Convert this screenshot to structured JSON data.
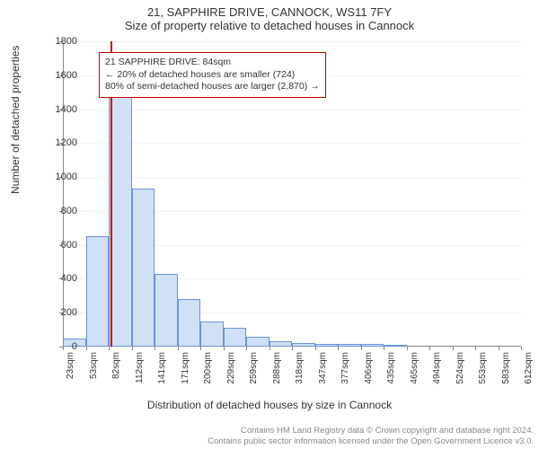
{
  "title_main": "21, SAPPHIRE DRIVE, CANNOCK, WS11 7FY",
  "title_sub": "Size of property relative to detached houses in Cannock",
  "y_axis_label": "Number of detached properties",
  "x_axis_label": "Distribution of detached houses by size in Cannock",
  "chart": {
    "type": "histogram",
    "ylim": [
      0,
      1800
    ],
    "ytick_step": 200,
    "xtick_labels": [
      "23sqm",
      "53sqm",
      "82sqm",
      "112sqm",
      "141sqm",
      "171sqm",
      "200sqm",
      "229sqm",
      "259sqm",
      "288sqm",
      "318sqm",
      "347sqm",
      "377sqm",
      "406sqm",
      "435sqm",
      "465sqm",
      "494sqm",
      "524sqm",
      "553sqm",
      "583sqm",
      "612sqm"
    ],
    "bars": [
      50,
      650,
      1480,
      930,
      430,
      280,
      150,
      110,
      60,
      30,
      20,
      15,
      15,
      15,
      5,
      0,
      0,
      0,
      0,
      0
    ],
    "bar_fill": "#cfe0f7",
    "bar_border": "#6b93d6",
    "grid_color": "#f0f0f0",
    "background_color": "#ffffff",
    "axis_color": "#888888"
  },
  "reference_line": {
    "x_value_sqm": 84,
    "color": "#cc0000"
  },
  "annotation": {
    "line1": "21 SAPPHIRE DRIVE: 84sqm",
    "line2": "← 20% of detached houses are smaller (724)",
    "line3": "80% of semi-detached houses are larger (2,870) →",
    "border_color": "#cc0000"
  },
  "footer": {
    "line1": "Contains HM Land Registry data © Crown copyright and database right 2024.",
    "line2": "Contains public sector information licensed under the Open Government Licence v3.0."
  }
}
